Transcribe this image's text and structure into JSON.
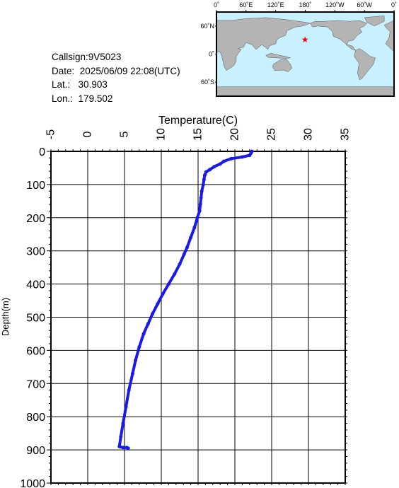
{
  "meta": {
    "callsign_label": "Callsign:",
    "callsign": "9V5023",
    "date_label": "Date:",
    "date": "2025/06/09 22:08(UTC)",
    "lat_label": "Lat.:",
    "lat": "30.903",
    "lon_label": "Lon.:",
    "lon": "179.502"
  },
  "map": {
    "lon_ticks": [
      "0˚",
      "60˚E",
      "120˚E",
      "180˚",
      "120˚W",
      "60˚W",
      "0˚"
    ],
    "lat_ticks": [
      "60˚N",
      "0˚",
      "60˚S"
    ],
    "ocean_color": "#c8f0ff",
    "land_color": "#b4b4b4",
    "marker_color": "#ff0000",
    "marker_lon": 179.502,
    "marker_lat": 30.903
  },
  "chart_data": {
    "type": "line",
    "xlabel": "Temperature(C)",
    "ylabel": "Depth(m)",
    "xlim": [
      -5,
      35
    ],
    "ylim": [
      1000,
      0
    ],
    "x_ticks": [
      -5,
      0,
      5,
      10,
      15,
      20,
      25,
      30,
      35
    ],
    "y_ticks": [
      0,
      100,
      200,
      300,
      400,
      500,
      600,
      700,
      800,
      900,
      1000
    ],
    "grid": true,
    "line_color": "#1a1ae6",
    "series": [
      {
        "points": [
          [
            22.3,
            0
          ],
          [
            22.2,
            5
          ],
          [
            22.0,
            12
          ],
          [
            21.0,
            17
          ],
          [
            19.5,
            22
          ],
          [
            18.5,
            30
          ],
          [
            18.0,
            38
          ],
          [
            17.2,
            46
          ],
          [
            16.6,
            55
          ],
          [
            16.1,
            62
          ],
          [
            15.9,
            72
          ],
          [
            15.8,
            85
          ],
          [
            15.7,
            100
          ],
          [
            15.5,
            120
          ],
          [
            15.4,
            140
          ],
          [
            15.3,
            160
          ],
          [
            15.2,
            180
          ],
          [
            14.9,
            200
          ],
          [
            14.5,
            230
          ],
          [
            14.0,
            260
          ],
          [
            13.5,
            290
          ],
          [
            13.1,
            310
          ],
          [
            12.5,
            340
          ],
          [
            11.8,
            370
          ],
          [
            11.0,
            400
          ],
          [
            10.2,
            430
          ],
          [
            9.5,
            460
          ],
          [
            8.8,
            490
          ],
          [
            8.2,
            520
          ],
          [
            7.6,
            550
          ],
          [
            7.0,
            590
          ],
          [
            6.5,
            630
          ],
          [
            6.1,
            670
          ],
          [
            5.6,
            720
          ],
          [
            5.2,
            770
          ],
          [
            4.8,
            820
          ],
          [
            4.5,
            860
          ],
          [
            4.3,
            890
          ],
          [
            4.8,
            893
          ],
          [
            5.3,
            893
          ],
          [
            5.5,
            895
          ]
        ]
      }
    ]
  }
}
